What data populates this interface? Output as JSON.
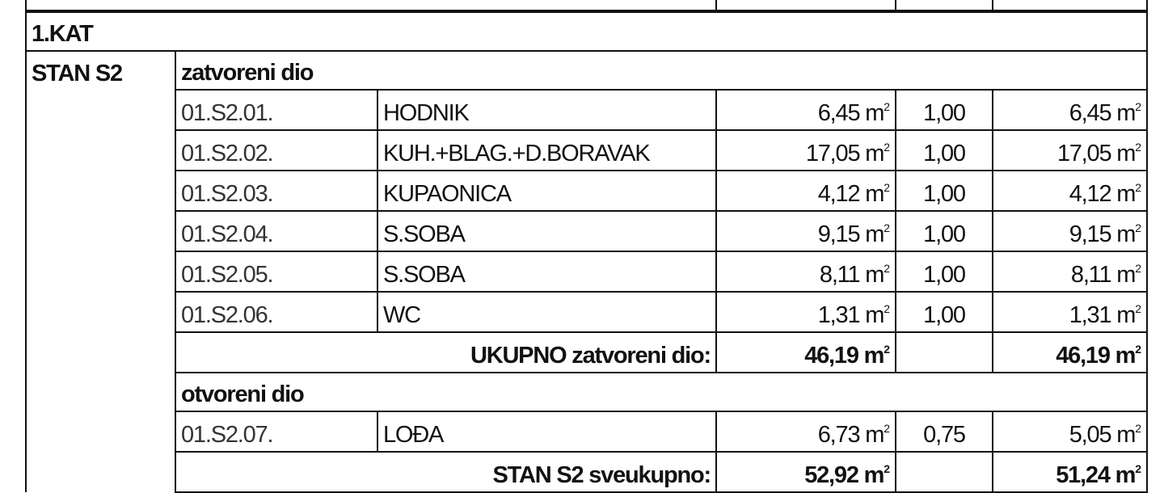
{
  "floor": "1.KAT",
  "apartment": "STAN S2",
  "closed_section": {
    "label": "zatvoreni dio",
    "rows": [
      {
        "code": "01.S2.01.",
        "name": "HODNIK",
        "area": "6,45 m",
        "coef": "1,00",
        "net": "6,45 m"
      },
      {
        "code": "01.S2.02.",
        "name": "KUH.+BLAG.+D.BORAVAK",
        "area": "17,05 m",
        "coef": "1,00",
        "net": "17,05 m"
      },
      {
        "code": "01.S2.03.",
        "name": "KUPAONICA",
        "area": "4,12 m",
        "coef": "1,00",
        "net": "4,12 m"
      },
      {
        "code": "01.S2.04.",
        "name": "S.SOBA",
        "area": "9,15 m",
        "coef": "1,00",
        "net": "9,15 m"
      },
      {
        "code": "01.S2.05.",
        "name": "S.SOBA",
        "area": "8,11 m",
        "coef": "1,00",
        "net": "8,11 m"
      },
      {
        "code": "01.S2.06.",
        "name": "WC",
        "area": "1,31 m",
        "coef": "1,00",
        "net": "1,31 m"
      }
    ],
    "total_label": "UKUPNO zatvoreni dio:",
    "total_area": "46,19 m",
    "total_net": "46,19 m"
  },
  "open_section": {
    "label": "otvoreni dio",
    "rows": [
      {
        "code": "01.S2.07.",
        "name": "LOĐA",
        "area": "6,73 m",
        "coef": "0,75",
        "net": "5,05 m"
      }
    ]
  },
  "grand_total": {
    "label": "STAN S2 sveukupno:",
    "area": "52,92 m",
    "net": "51,24 m"
  },
  "unit_exponent": "2"
}
